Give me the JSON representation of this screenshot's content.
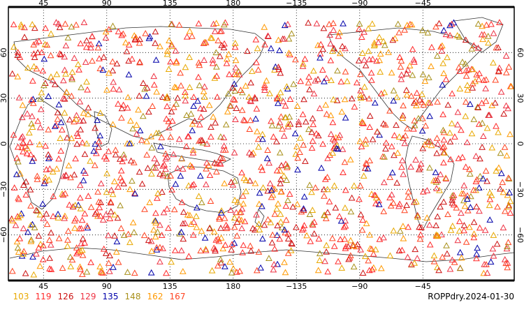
{
  "map": {
    "top_tick_labels": [
      "45",
      "90",
      "135",
      "180",
      "−135",
      "−90",
      "−45"
    ],
    "bottom_tick_labels": [
      "45",
      "90",
      "135",
      "180",
      "−135",
      "−90",
      "−45"
    ],
    "left_tick_labels": [
      "60",
      "30",
      "0",
      "−30",
      "−60"
    ],
    "right_tick_labels": [
      "60",
      "30",
      "0",
      "−30",
      "−60"
    ],
    "longitudes": [
      45,
      90,
      135,
      180,
      -135,
      -90,
      -45
    ],
    "latitudes": [
      60,
      30,
      0,
      -30,
      -60
    ],
    "lon_range": [
      20,
      380
    ],
    "lat_range": [
      -90,
      90
    ],
    "marker_shape": "triangle-outline",
    "grid": "dotted"
  },
  "legend": {
    "items": [
      {
        "label": "103",
        "color": "#e8a800"
      },
      {
        "label": "119",
        "color": "#ff2a2a"
      },
      {
        "label": "126",
        "color": "#cc1111"
      },
      {
        "label": "129",
        "color": "#ee3344"
      },
      {
        "label": "135",
        "color": "#0000aa"
      },
      {
        "label": "148",
        "color": "#a8901a"
      },
      {
        "label": "162",
        "color": "#ff9900"
      },
      {
        "label": "167",
        "color": "#ff4422"
      }
    ]
  },
  "footer": {
    "title": "ROPPdry.2024-01-30"
  }
}
